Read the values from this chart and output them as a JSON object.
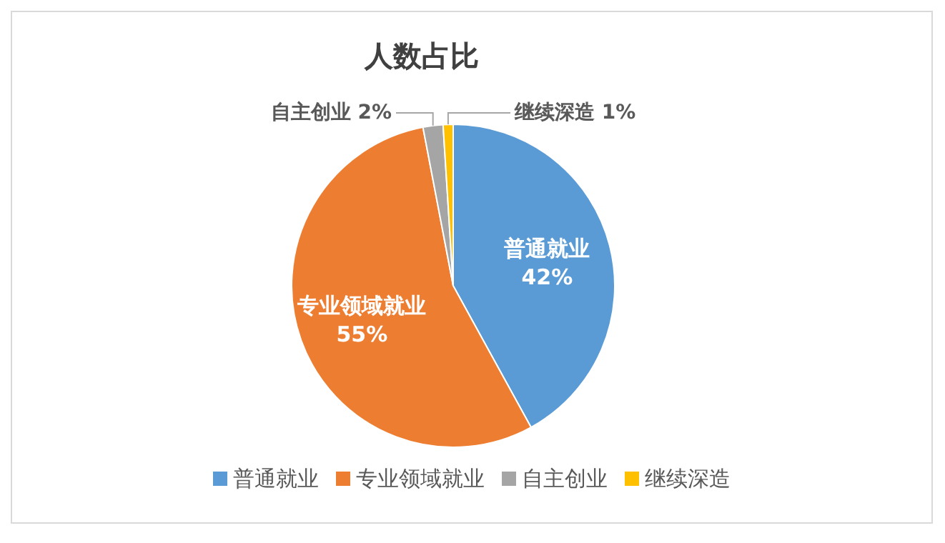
{
  "chart_data": {
    "type": "pie",
    "title": "人数占比",
    "categories": [
      "普通就业",
      "专业领域就业",
      "自主创业",
      "继续深造"
    ],
    "values": [
      42,
      55,
      2,
      1
    ],
    "colors": [
      "#5b9bd5",
      "#ed7d31",
      "#a5a5a5",
      "#ffc000"
    ],
    "value_labels": [
      "42%",
      "55%",
      "2%",
      "1%"
    ],
    "legend": "bottom"
  }
}
